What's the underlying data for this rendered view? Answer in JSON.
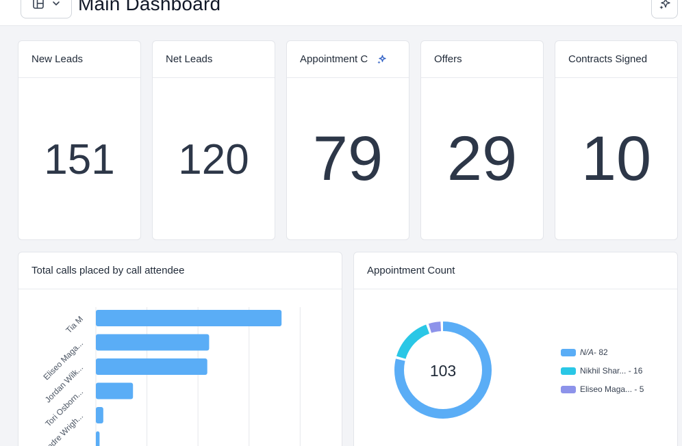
{
  "header": {
    "title": "Main Dashboard",
    "layout_icon": "layout-panel-icon",
    "dropdown_icon": "chevron-down-icon",
    "ai_icon": "sparkle-icon"
  },
  "kpis": [
    {
      "title": "New Leads",
      "value": "151"
    },
    {
      "title": "Net Leads",
      "value": "120"
    },
    {
      "title": "Appointment C",
      "value": "79"
    },
    {
      "title": "Offers",
      "value": "29"
    },
    {
      "title": "Contracts Signed",
      "value": "10"
    }
  ],
  "calls_card": {
    "title": "Total calls placed by call attendee"
  },
  "appointment_card": {
    "title": "Appointment Count",
    "total": "103"
  },
  "chart_data": [
    {
      "type": "bar",
      "orientation": "horizontal",
      "title": "Total calls placed by call attendee",
      "categories": [
        "Tia M",
        "Eliseo Maga...",
        "Jordan Wilk...",
        "Tori Osborn...",
        "Andre Wrigh...",
        ""
      ],
      "values": [
        100,
        61,
        60,
        20,
        4,
        2
      ],
      "xlim": [
        0,
        118
      ],
      "grid": true,
      "color": "#5aadf6"
    },
    {
      "type": "pie",
      "variant": "donut",
      "title": "Appointment Count",
      "center_label": "103",
      "labels": [
        "N/A",
        "Nikhil Shar...",
        "Eliseo Maga..."
      ],
      "values": [
        82,
        16,
        5
      ],
      "legend_labels": [
        "N/A",
        "- 82",
        "Nikhil Shar... - 16",
        "Eliseo Maga... - 5"
      ],
      "colors": [
        "#5aadf6",
        "#2ac7e6",
        "#8d93ea"
      ],
      "legend_placement": "right"
    }
  ]
}
